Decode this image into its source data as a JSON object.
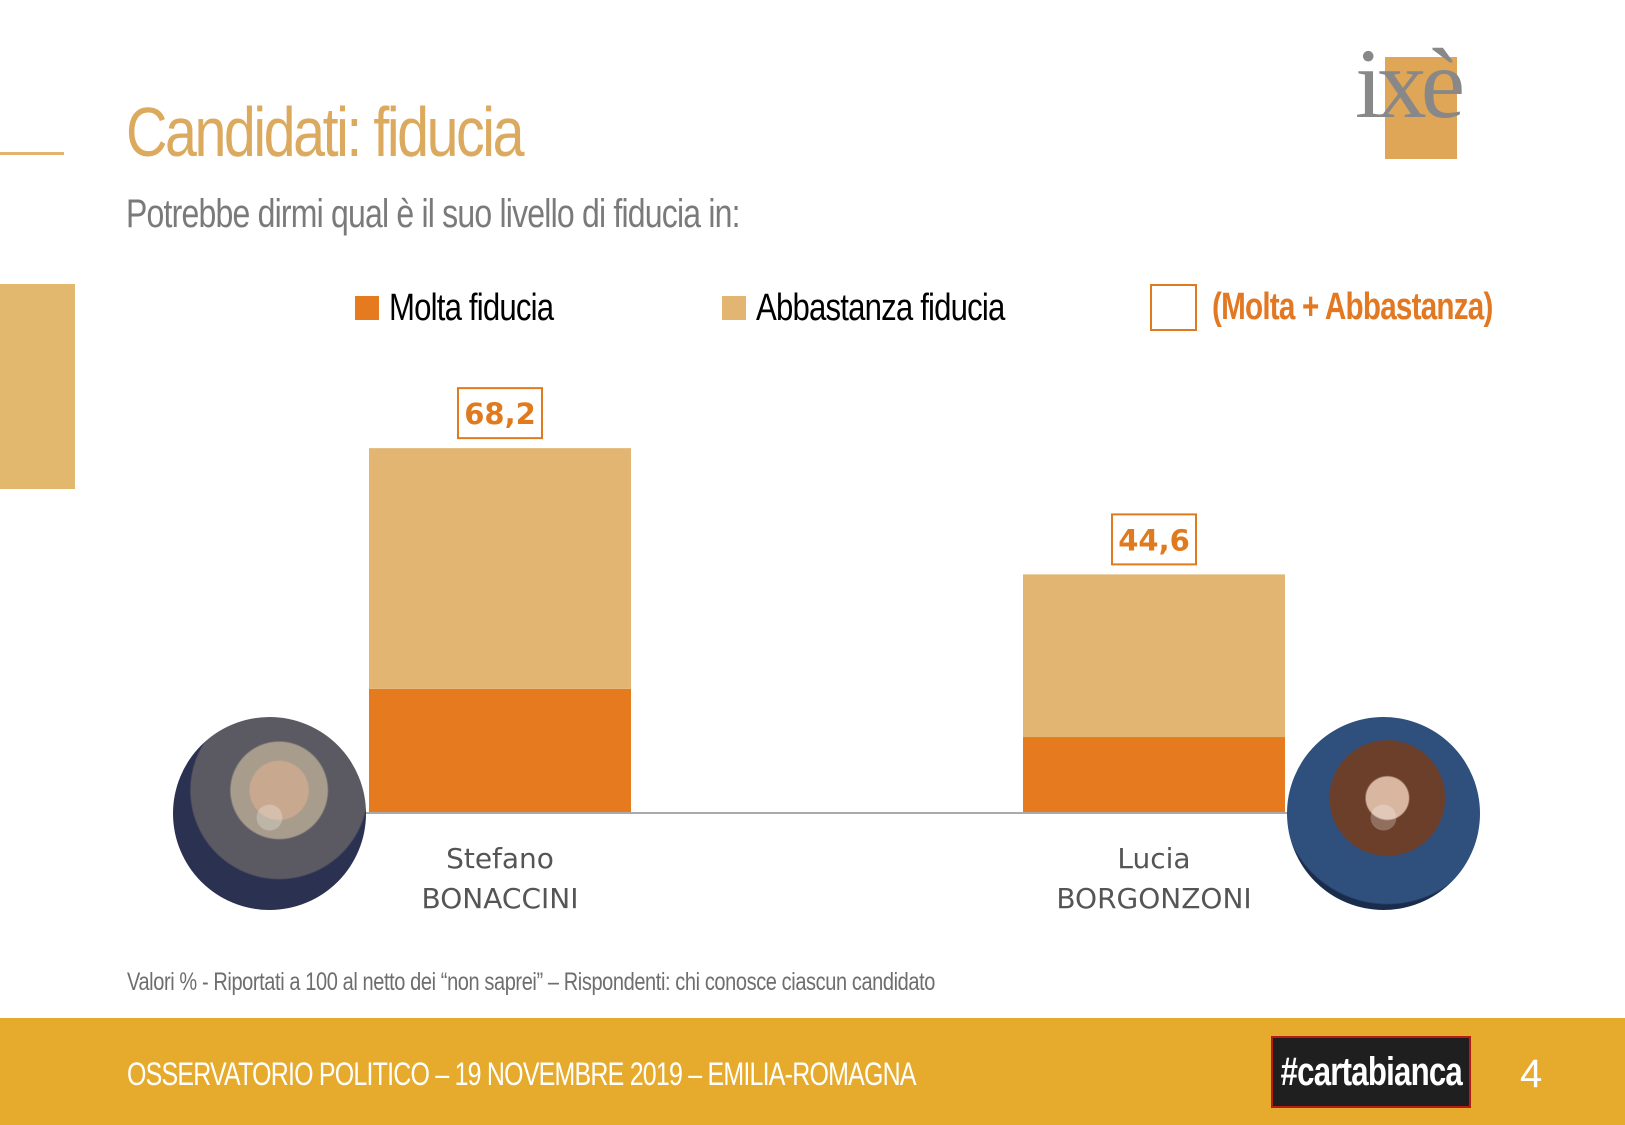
{
  "title": "Candidati: fiducia",
  "subtitle": "Potrebbe dirmi qual è il suo livello di fiducia in:",
  "logo": {
    "text": "ixè"
  },
  "legend": {
    "molta": "Molta fiducia",
    "abbastanza": "Abbastanza fiducia",
    "total": "(Molta + Abbastanza)"
  },
  "colors": {
    "molta": "#e67a1e",
    "abbastanza": "#e2b672",
    "total": "#e07a1f",
    "accent": "#dcaa5e",
    "footer": "#e6ab2c"
  },
  "chart_data": {
    "type": "bar",
    "stacked": true,
    "categories": [
      "Stefano BONACCINI",
      "Lucia BORGONZONI"
    ],
    "category_lines": [
      [
        "Stefano",
        "BONACCINI"
      ],
      [
        "Lucia",
        "BORGONZONI"
      ]
    ],
    "series": [
      {
        "name": "Molta fiducia",
        "values": [
          23.2,
          14.2
        ]
      },
      {
        "name": "Abbastanza fiducia",
        "values": [
          45.0,
          30.4
        ]
      }
    ],
    "totals": [
      "68,2",
      "44,6"
    ],
    "total_values": [
      68.2,
      44.6
    ],
    "ylim": [
      0,
      80
    ],
    "grid": false,
    "legend_position": "top"
  },
  "photos": [
    {
      "icon": "person-photo-icon"
    },
    {
      "icon": "person-photo-icon"
    }
  ],
  "footnote": "Valori % - Riportati a 100 al netto dei “non saprei” – Rispondenti: chi conosce ciascun candidato",
  "footer": {
    "text": "OSSERVATORIO POLITICO – 19 NOVEMBRE 2019 – EMILIA-ROMAGNA",
    "badge": "#cartabianca",
    "page": "4"
  }
}
